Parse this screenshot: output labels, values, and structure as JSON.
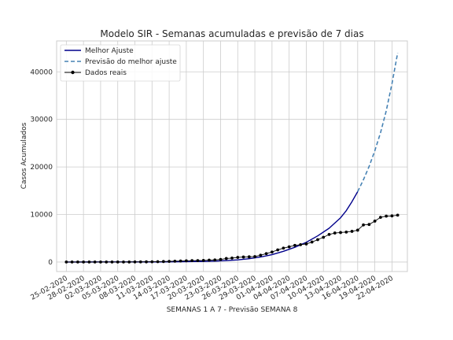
{
  "chart_data": {
    "type": "line",
    "title": "Modelo SIR - Semanas acumuladas e previsão de 7 dias",
    "xlabel": "SEMANAS 1 A 7 - Previsão SEMANA 8",
    "ylabel": "Casos Acumulados",
    "x_tick_labels": [
      "25-02-2020",
      "28-02-2020",
      "02-03-2020",
      "05-03-2020",
      "08-03-2020",
      "11-03-2020",
      "14-03-2020",
      "17-03-2020",
      "20-03-2020",
      "23-03-2020",
      "26-03-2020",
      "29-03-2020",
      "01-04-2020",
      "04-04-2020",
      "07-04-2020",
      "10-04-2020",
      "13-04-2020",
      "16-04-2020",
      "19-04-2020",
      "22-04-2020"
    ],
    "y_ticks": [
      0,
      10000,
      20000,
      30000,
      40000
    ],
    "xlim": [
      -1.7,
      59.7
    ],
    "ylim": [
      -2000,
      46500
    ],
    "grid": true,
    "legend_position": "top-left",
    "series": [
      {
        "name": "Melhor Ajuste",
        "style": "solid",
        "color": "#00008b",
        "x": [
          0,
          4,
          8,
          12,
          16,
          20,
          24,
          26,
          28,
          30,
          32,
          34,
          36,
          38,
          40,
          42,
          44,
          46,
          48,
          49,
          50,
          51
        ],
        "y": [
          5,
          8,
          12,
          20,
          30,
          60,
          120,
          190,
          300,
          450,
          700,
          1050,
          1550,
          2250,
          3100,
          4150,
          5500,
          7100,
          9300,
          10800,
          12700,
          14800
        ]
      },
      {
        "name": "Previsão do melhor ajuste",
        "style": "dashed",
        "color": "#4682b4",
        "x": [
          51,
          52,
          53,
          54,
          55,
          56,
          57,
          58
        ],
        "y": [
          14800,
          17300,
          20100,
          23400,
          27200,
          31800,
          37500,
          44000
        ]
      },
      {
        "name": "Dados reais",
        "style": "solid-marker",
        "color": "#000000",
        "x": [
          0,
          1,
          2,
          3,
          4,
          5,
          6,
          7,
          8,
          9,
          10,
          11,
          12,
          13,
          14,
          15,
          16,
          17,
          18,
          19,
          20,
          21,
          22,
          23,
          24,
          25,
          26,
          27,
          28,
          29,
          30,
          31,
          32,
          33,
          34,
          35,
          36,
          37,
          38,
          39,
          40,
          41,
          42,
          43,
          44,
          45,
          46,
          47,
          48,
          49,
          50,
          51,
          52,
          53,
          54,
          55,
          56,
          57,
          58
        ],
        "y": [
          1,
          1,
          1,
          1,
          1,
          1,
          2,
          2,
          3,
          3,
          4,
          8,
          19,
          25,
          36,
          52,
          65,
          98,
          131,
          175,
          211,
          261,
          294,
          302,
          330,
          395,
          440,
          540,
          740,
          830,
          970,
          1050,
          1090,
          1150,
          1430,
          1770,
          2100,
          2550,
          2920,
          3200,
          3500,
          3650,
          3800,
          4200,
          4700,
          5200,
          5800,
          6100,
          6200,
          6300,
          6450,
          6700,
          7800,
          7900,
          8600,
          9400,
          9650,
          9700,
          9850
        ]
      }
    ]
  }
}
